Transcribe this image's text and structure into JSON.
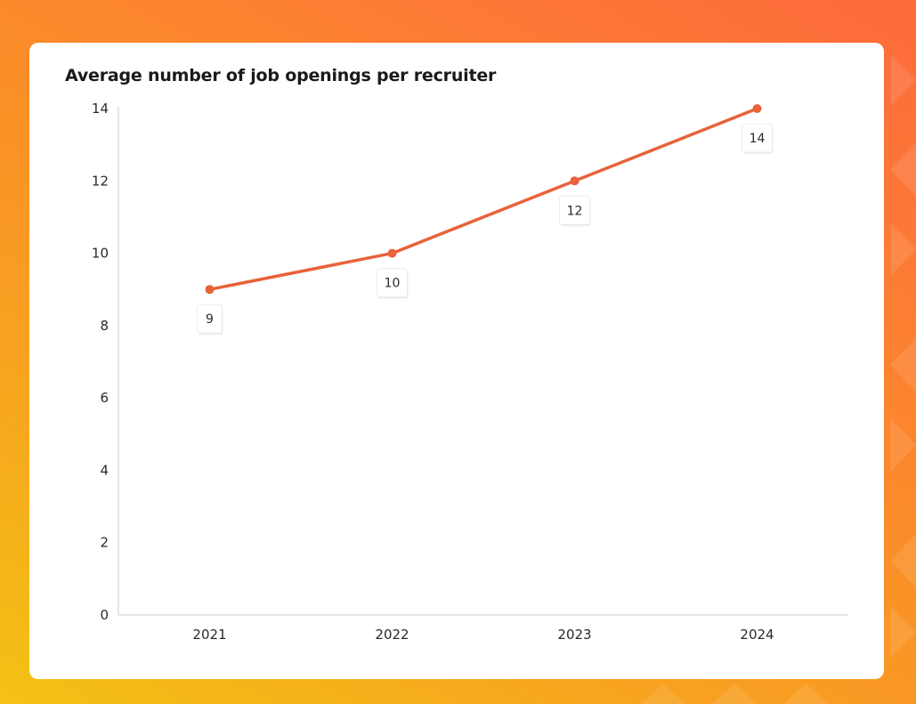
{
  "colors": {
    "line": "#e8623a",
    "axis": "#cfcfcf",
    "card": "#ffffff"
  },
  "chart_data": {
    "type": "line",
    "title": "Average number of job openings per recruiter",
    "xlabel": "",
    "ylabel": "",
    "categories": [
      "2021",
      "2022",
      "2023",
      "2024"
    ],
    "series": [
      {
        "values": [
          9,
          10,
          12,
          14
        ]
      }
    ],
    "data_labels": [
      "9",
      "10",
      "12",
      "14"
    ],
    "y_ticks": [
      0,
      2,
      4,
      6,
      8,
      10,
      12,
      14
    ],
    "ylim": [
      0,
      14
    ],
    "grid": false,
    "legend": "none"
  }
}
